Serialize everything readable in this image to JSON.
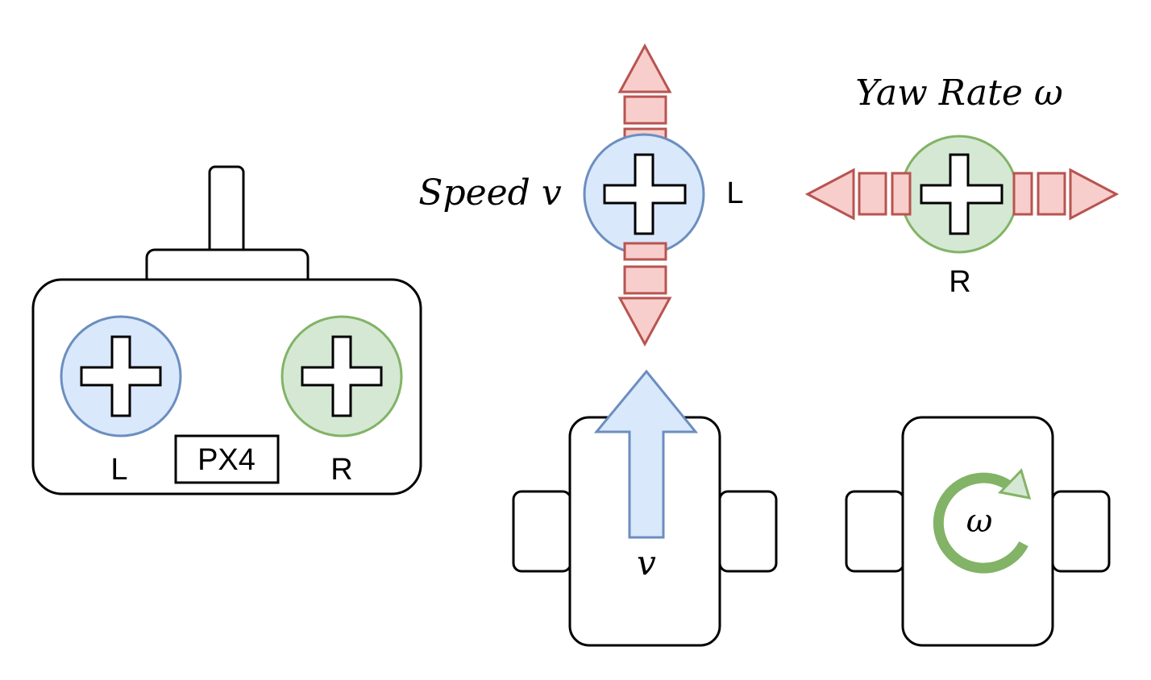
{
  "controller": {
    "left_label": "L",
    "right_label": "R",
    "board_label": "PX4"
  },
  "speed_stick": {
    "title": "Speed v",
    "label": "L"
  },
  "yaw_stick": {
    "title": "Yaw Rate ω",
    "label": "R"
  },
  "rover_speed": {
    "symbol": "v"
  },
  "rover_yaw": {
    "symbol": "ω"
  },
  "colors": {
    "left_fill": "#dae8fc",
    "left_stroke": "#6c8ebf",
    "right_fill": "#d5e8d4",
    "right_stroke": "#82b366",
    "arrow_fill": "#f8cecc",
    "arrow_stroke": "#b85450",
    "rotation_stroke": "#82b366"
  }
}
